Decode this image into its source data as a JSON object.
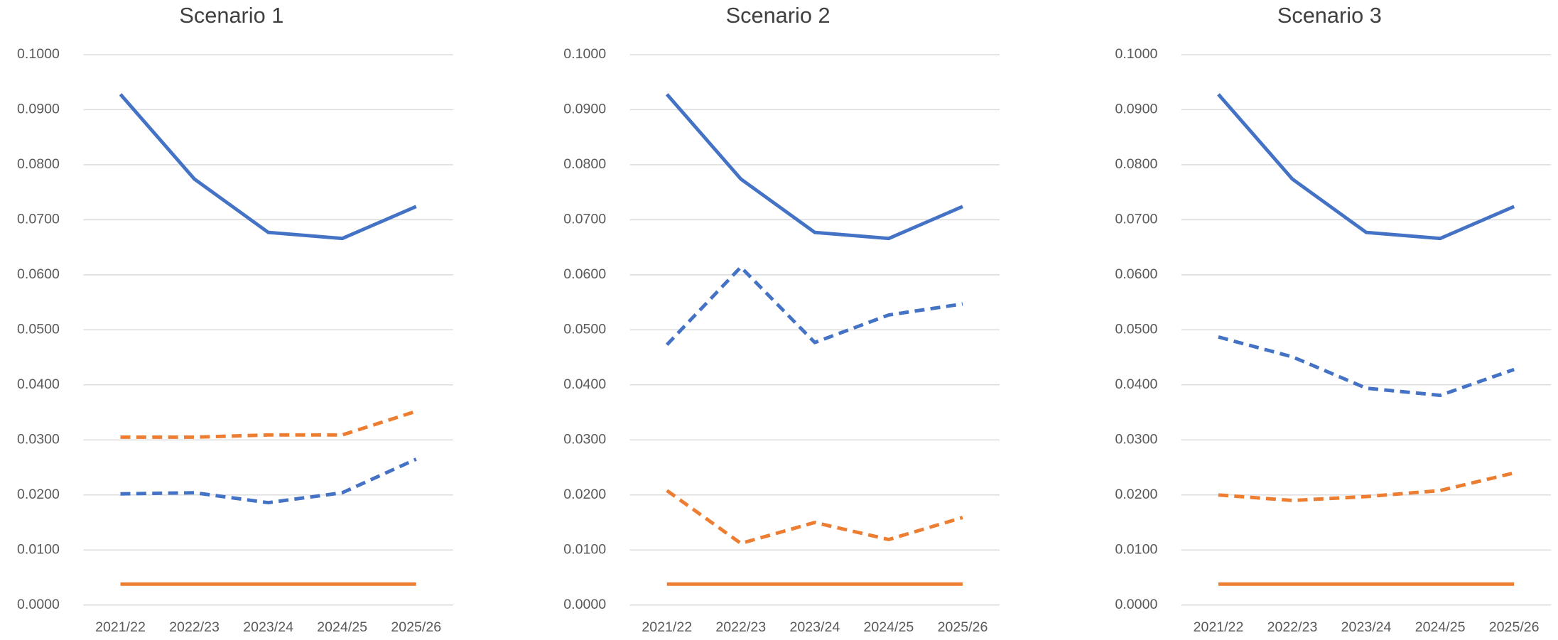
{
  "chart_data": [
    {
      "type": "line",
      "title": "Scenario 1",
      "categories": [
        "2021/22",
        "2022/23",
        "2023/24",
        "2024/25",
        "2025/26"
      ],
      "ylim": [
        0,
        0.1
      ],
      "yticks": [
        {
          "value": 0,
          "label": "0.0000"
        },
        {
          "value": 0.01,
          "label": "0.0100"
        },
        {
          "value": 0.02,
          "label": "0.0200"
        },
        {
          "value": 0.03,
          "label": "0.0300"
        },
        {
          "value": 0.04,
          "label": "0.0400"
        },
        {
          "value": 0.05,
          "label": "0.0500"
        },
        {
          "value": 0.06,
          "label": "0.0600"
        },
        {
          "value": 0.07,
          "label": "0.0700"
        },
        {
          "value": 0.08,
          "label": "0.0800"
        },
        {
          "value": 0.09,
          "label": "0.0900"
        },
        {
          "value": 0.1,
          "label": "0.1000"
        }
      ],
      "grid": true,
      "series": [
        {
          "color": "#4472c4",
          "dashed": false,
          "values": [
            0.0928,
            0.0774,
            0.0677,
            0.0666,
            0.0724
          ]
        },
        {
          "color": "#4472c4",
          "dashed": true,
          "values": [
            0.0202,
            0.0204,
            0.0186,
            0.0204,
            0.0265
          ]
        },
        {
          "color": "#ed7d31",
          "dashed": true,
          "values": [
            0.0305,
            0.0305,
            0.0309,
            0.0309,
            0.0352
          ]
        },
        {
          "color": "#ed7d31",
          "dashed": false,
          "values": [
            0.0038,
            0.0038,
            0.0038,
            0.0038,
            0.0038
          ]
        }
      ]
    },
    {
      "type": "line",
      "title": "Scenario 2",
      "categories": [
        "2021/22",
        "2022/23",
        "2023/24",
        "2024/25",
        "2025/26"
      ],
      "ylim": [
        0,
        0.1
      ],
      "yticks": [
        {
          "value": 0,
          "label": "0.0000"
        },
        {
          "value": 0.01,
          "label": "0.0100"
        },
        {
          "value": 0.02,
          "label": "0.0200"
        },
        {
          "value": 0.03,
          "label": "0.0300"
        },
        {
          "value": 0.04,
          "label": "0.0400"
        },
        {
          "value": 0.05,
          "label": "0.0500"
        },
        {
          "value": 0.06,
          "label": "0.0600"
        },
        {
          "value": 0.07,
          "label": "0.0700"
        },
        {
          "value": 0.08,
          "label": "0.0800"
        },
        {
          "value": 0.09,
          "label": "0.0900"
        },
        {
          "value": 0.1,
          "label": "0.1000"
        }
      ],
      "grid": true,
      "series": [
        {
          "color": "#4472c4",
          "dashed": false,
          "values": [
            0.0928,
            0.0774,
            0.0677,
            0.0666,
            0.0724
          ]
        },
        {
          "color": "#4472c4",
          "dashed": true,
          "values": [
            0.0473,
            0.0614,
            0.0477,
            0.0527,
            0.0547
          ]
        },
        {
          "color": "#ed7d31",
          "dashed": true,
          "values": [
            0.0208,
            0.0112,
            0.015,
            0.0119,
            0.0159
          ]
        },
        {
          "color": "#ed7d31",
          "dashed": false,
          "values": [
            0.0038,
            0.0038,
            0.0038,
            0.0038,
            0.0038
          ]
        }
      ]
    },
    {
      "type": "line",
      "title": "Scenario 3",
      "categories": [
        "2021/22",
        "2022/23",
        "2023/24",
        "2024/25",
        "2025/26"
      ],
      "ylim": [
        0,
        0.1
      ],
      "yticks": [
        {
          "value": 0,
          "label": "0.0000"
        },
        {
          "value": 0.01,
          "label": "0.0100"
        },
        {
          "value": 0.02,
          "label": "0.0200"
        },
        {
          "value": 0.03,
          "label": "0.0300"
        },
        {
          "value": 0.04,
          "label": "0.0400"
        },
        {
          "value": 0.05,
          "label": "0.0500"
        },
        {
          "value": 0.06,
          "label": "0.0600"
        },
        {
          "value": 0.07,
          "label": "0.0700"
        },
        {
          "value": 0.08,
          "label": "0.0800"
        },
        {
          "value": 0.09,
          "label": "0.0900"
        },
        {
          "value": 0.1,
          "label": "0.1000"
        }
      ],
      "grid": true,
      "series": [
        {
          "color": "#4472c4",
          "dashed": false,
          "values": [
            0.0928,
            0.0774,
            0.0677,
            0.0666,
            0.0724
          ]
        },
        {
          "color": "#4472c4",
          "dashed": true,
          "values": [
            0.0487,
            0.0451,
            0.0394,
            0.0381,
            0.0428
          ]
        },
        {
          "color": "#ed7d31",
          "dashed": true,
          "values": [
            0.02,
            0.019,
            0.0197,
            0.0208,
            0.024
          ]
        },
        {
          "color": "#ed7d31",
          "dashed": false,
          "values": [
            0.0038,
            0.0038,
            0.0038,
            0.0038,
            0.0038
          ]
        }
      ]
    }
  ]
}
